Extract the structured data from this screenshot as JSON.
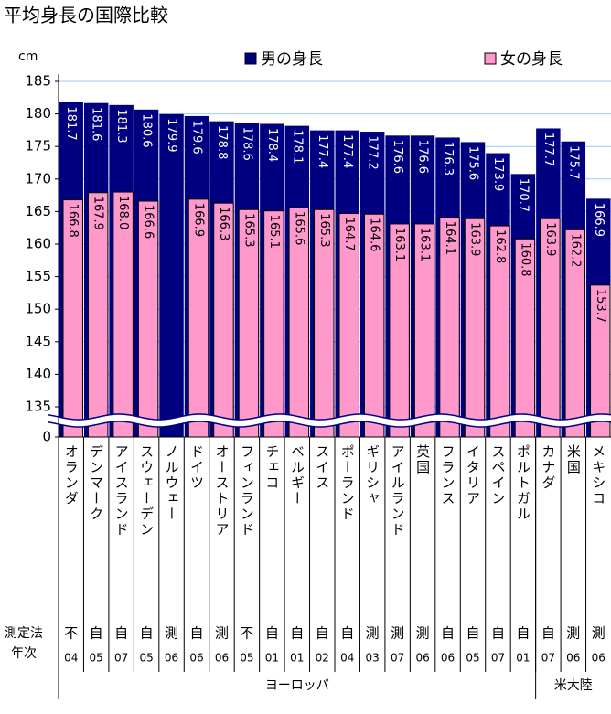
{
  "chart_data": {
    "type": "bar",
    "title": "平均身長の国際比較",
    "y_unit": "cm",
    "categories": [
      "オランダ",
      "デンマーク",
      "アイスランド",
      "スウェーデン",
      "ノルウェー",
      "ドイツ",
      "オーストリア",
      "フィンランド",
      "チェコ",
      "ベルギー",
      "スイス",
      "ポーランド",
      "ギリシャ",
      "アイルランド",
      "英国",
      "フランス",
      "イタリア",
      "スペイン",
      "ポルトガル",
      "カナダ",
      "米国",
      "メキシコ"
    ],
    "series": [
      {
        "name": "男の身長",
        "color": "#000080",
        "label_color": "#ffffff",
        "values": [
          181.7,
          181.6,
          181.3,
          180.6,
          179.9,
          179.6,
          178.8,
          178.6,
          178.4,
          178.1,
          177.4,
          177.4,
          177.2,
          176.6,
          176.6,
          176.3,
          175.6,
          173.9,
          170.7,
          177.7,
          175.7,
          166.9
        ],
        "value_labels": [
          "181.7",
          "181.6",
          "181.3",
          "180.6",
          "179.9",
          "179.6",
          "178.8",
          "178.6",
          "178.4",
          "178.1",
          "177.4",
          "177.4",
          "177.2",
          "176.6",
          "176.6",
          "176.3",
          "175.6",
          "173.9",
          "170.7",
          "177.7",
          "175.7",
          "166.9"
        ]
      },
      {
        "name": "女の身長",
        "color": "#ff99cc",
        "label_color": "#000000",
        "values": [
          166.8,
          167.9,
          168.0,
          166.6,
          null,
          166.9,
          166.3,
          165.3,
          165.1,
          165.6,
          165.3,
          164.7,
          164.6,
          163.1,
          163.1,
          164.1,
          163.9,
          162.8,
          160.8,
          163.9,
          162.2,
          153.7
        ],
        "value_labels": [
          "166.8",
          "167.9",
          "168.0",
          "166.6",
          null,
          "166.9",
          "166.3",
          "165.3",
          "165.1",
          "165.6",
          "165.3",
          "164.7",
          "164.6",
          "163.1",
          "163.1",
          "164.1",
          "163.9",
          "162.8",
          "160.8",
          "163.9",
          "162.2",
          "153.7"
        ]
      }
    ],
    "ylim": [
      0,
      185
    ],
    "axis_break": [
      0,
      135
    ],
    "yticks": [
      0,
      135,
      140,
      145,
      150,
      155,
      160,
      165,
      170,
      175,
      180,
      185
    ],
    "grid": true,
    "legend": "top",
    "row_labels": [
      "測定法",
      "年次"
    ],
    "method": [
      "不",
      "自",
      "自",
      "自",
      "測",
      "自",
      "測",
      "不",
      "自",
      "自",
      "自",
      "自",
      "測",
      "測",
      "測",
      "自",
      "自",
      "自",
      "自",
      "自",
      "測",
      "測"
    ],
    "year": [
      "04",
      "05",
      "07",
      "05",
      "06",
      "06",
      "06",
      "05",
      "01",
      "01",
      "02",
      "04",
      "03",
      "07",
      "06",
      "06",
      "05",
      "07",
      "01",
      "07",
      "06",
      "06"
    ],
    "regions": [
      {
        "name": "ヨーロッパ",
        "span": 19
      },
      {
        "name": "米大陸",
        "span": 3
      }
    ]
  }
}
